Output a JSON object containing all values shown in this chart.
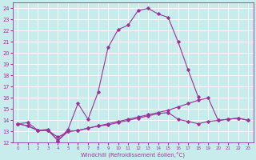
{
  "xlabel": "Windchill (Refroidissement éolien,°C)",
  "background_color": "#c8ecec",
  "grid_color": "#ffffff",
  "line_color": "#993399",
  "xlim": [
    -0.5,
    23.5
  ],
  "ylim": [
    12,
    24.5
  ],
  "xticks": [
    0,
    1,
    2,
    3,
    4,
    5,
    6,
    7,
    8,
    9,
    10,
    11,
    12,
    13,
    14,
    15,
    16,
    17,
    18,
    19,
    20,
    21,
    22,
    23
  ],
  "yticks": [
    12,
    13,
    14,
    15,
    16,
    17,
    18,
    19,
    20,
    21,
    22,
    23,
    24
  ],
  "series_big_x": [
    0,
    1,
    2,
    3,
    4,
    5,
    6,
    7,
    8,
    9,
    10,
    11,
    12,
    13,
    14,
    15,
    16,
    17,
    18
  ],
  "series_big_y": [
    13.7,
    13.8,
    13.1,
    13.2,
    12.2,
    13.2,
    15.5,
    14.1,
    16.5,
    20.5,
    22.1,
    22.5,
    23.8,
    24.0,
    23.5,
    23.2,
    21.0,
    18.5,
    16.1
  ],
  "series_flat1_x": [
    0,
    1,
    2,
    3,
    4,
    5,
    6,
    7,
    8,
    9,
    10,
    11,
    12,
    13,
    14,
    15,
    16,
    17,
    18,
    19,
    20,
    21,
    22,
    23
  ],
  "series_flat1_y": [
    13.7,
    13.5,
    13.1,
    13.1,
    12.2,
    13.0,
    13.1,
    13.3,
    13.5,
    13.7,
    13.9,
    14.1,
    14.3,
    14.5,
    14.7,
    14.9,
    15.2,
    15.5,
    15.8,
    16.0,
    14.0,
    14.1,
    14.2,
    14.0
  ],
  "series_flat2_x": [
    0,
    1,
    2,
    3,
    4,
    5,
    6,
    7,
    8,
    9,
    10,
    11,
    12,
    13,
    14,
    15,
    16,
    17,
    18,
    19,
    20,
    21,
    22,
    23
  ],
  "series_flat2_y": [
    13.7,
    13.5,
    13.1,
    13.1,
    12.5,
    13.0,
    13.1,
    13.3,
    13.5,
    13.6,
    13.8,
    14.0,
    14.2,
    14.4,
    14.6,
    14.7,
    14.1,
    13.9,
    13.7,
    13.9,
    14.0,
    14.1,
    14.2,
    14.0
  ]
}
